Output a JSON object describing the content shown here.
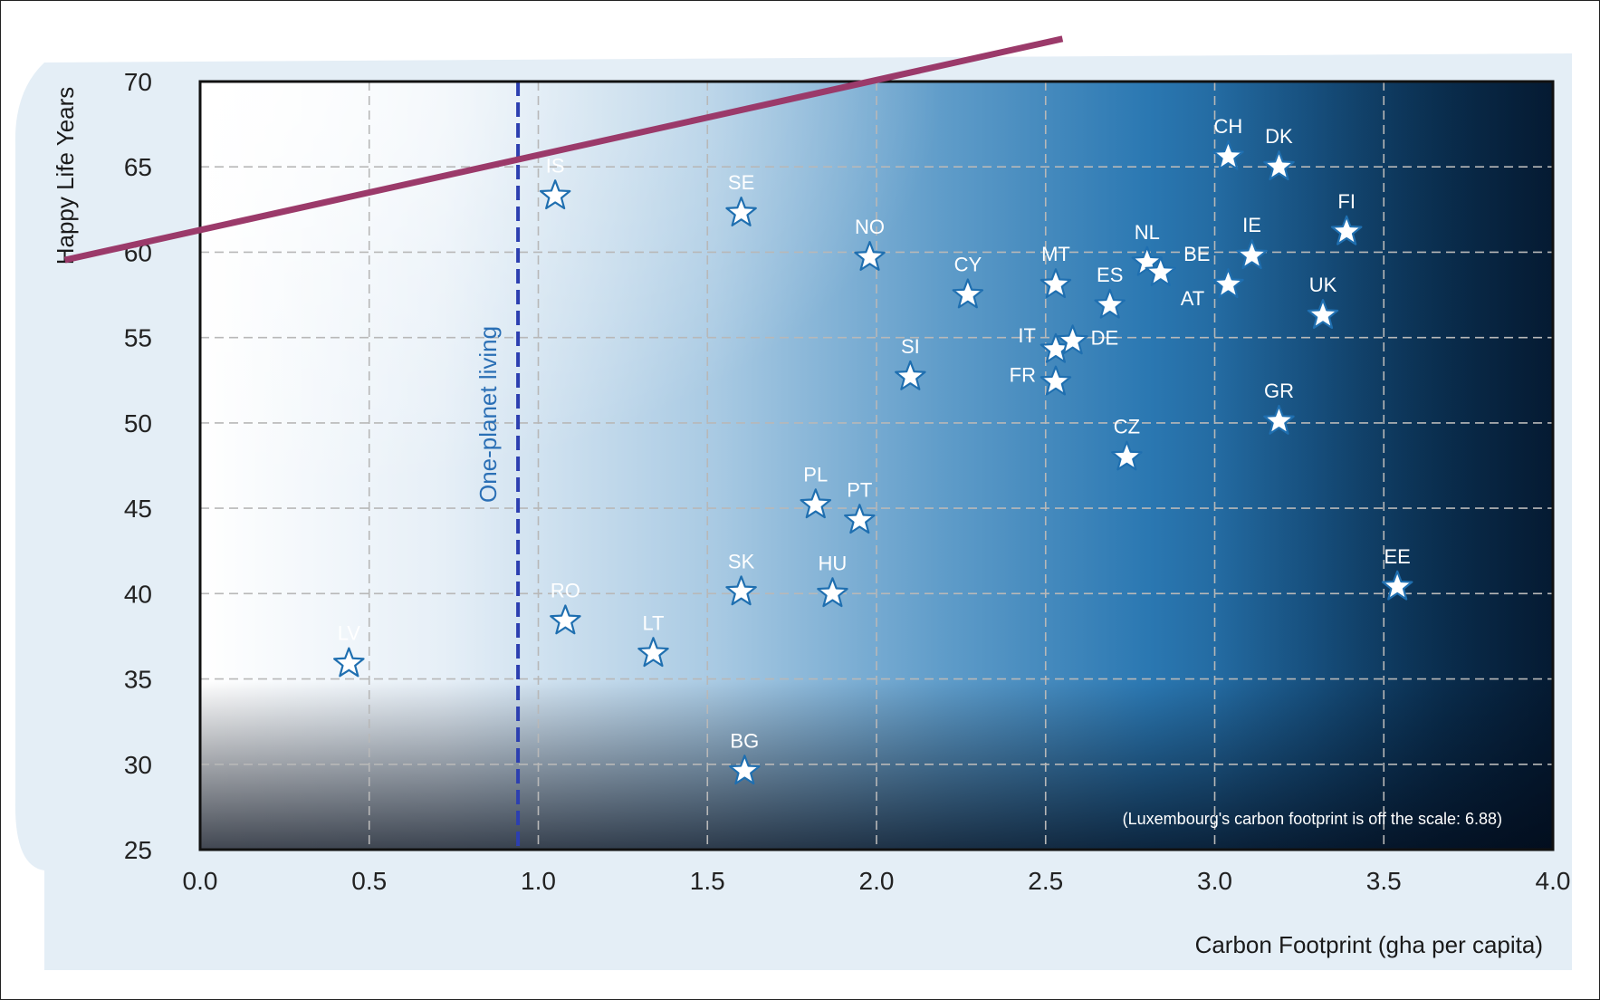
{
  "chart_data": {
    "type": "scatter",
    "title": "",
    "xlabel": "Carbon Footprint (gha per capita)",
    "ylabel": "Happy Life Years",
    "xlim": [
      0.0,
      4.0
    ],
    "ylim": [
      25,
      70
    ],
    "x_ticks": [
      "0.0",
      "0.5",
      "1.0",
      "1.5",
      "2.0",
      "2.5",
      "3.0",
      "3.5",
      "4.0"
    ],
    "y_ticks": [
      "25",
      "30",
      "35",
      "40",
      "45",
      "50",
      "55",
      "60",
      "65",
      "70"
    ],
    "grid": true,
    "reference_line": {
      "x": 0.94,
      "label": "One-planet living",
      "color": "#2c3fb0"
    },
    "trend_line": {
      "from": [
        0.0,
        61.3
      ],
      "to": [
        1.98,
        70
      ],
      "color": "#9b3a6a"
    },
    "annotation": "(Luxembourg's carbon footprint is off the scale: 6.88)",
    "marker": "star",
    "points": [
      {
        "label": "LV",
        "x": 0.44,
        "y": 35.9
      },
      {
        "label": "IS",
        "x": 1.05,
        "y": 63.3
      },
      {
        "label": "RO",
        "x": 1.08,
        "y": 38.4
      },
      {
        "label": "LT",
        "x": 1.34,
        "y": 36.5
      },
      {
        "label": "SE",
        "x": 1.6,
        "y": 62.3
      },
      {
        "label": "SK",
        "x": 1.6,
        "y": 40.1
      },
      {
        "label": "BG",
        "x": 1.61,
        "y": 29.6
      },
      {
        "label": "PL",
        "x": 1.82,
        "y": 45.2
      },
      {
        "label": "HU",
        "x": 1.87,
        "y": 40.0
      },
      {
        "label": "PT",
        "x": 1.95,
        "y": 44.3
      },
      {
        "label": "NO",
        "x": 1.98,
        "y": 59.7
      },
      {
        "label": "SI",
        "x": 2.1,
        "y": 52.7
      },
      {
        "label": "CY",
        "x": 2.27,
        "y": 57.5
      },
      {
        "label": "MT",
        "x": 2.53,
        "y": 58.1
      },
      {
        "label": "IT",
        "x": 2.53,
        "y": 54.3
      },
      {
        "label": "FR",
        "x": 2.53,
        "y": 52.4
      },
      {
        "label": "DE",
        "x": 2.58,
        "y": 54.8
      },
      {
        "label": "ES",
        "x": 2.69,
        "y": 56.9
      },
      {
        "label": "CZ",
        "x": 2.74,
        "y": 48.0
      },
      {
        "label": "NL",
        "x": 2.8,
        "y": 59.4
      },
      {
        "label": "AT",
        "x": 2.84,
        "y": 58.8
      },
      {
        "label": "CH",
        "x": 3.04,
        "y": 65.6
      },
      {
        "label": "BE",
        "x": 3.04,
        "y": 58.1
      },
      {
        "label": "IE",
        "x": 3.11,
        "y": 59.8
      },
      {
        "label": "DK",
        "x": 3.19,
        "y": 65.0
      },
      {
        "label": "GR",
        "x": 3.19,
        "y": 50.1
      },
      {
        "label": "UK",
        "x": 3.32,
        "y": 56.3
      },
      {
        "label": "FI",
        "x": 3.39,
        "y": 61.2
      },
      {
        "label": "EE",
        "x": 3.54,
        "y": 40.4
      }
    ]
  }
}
